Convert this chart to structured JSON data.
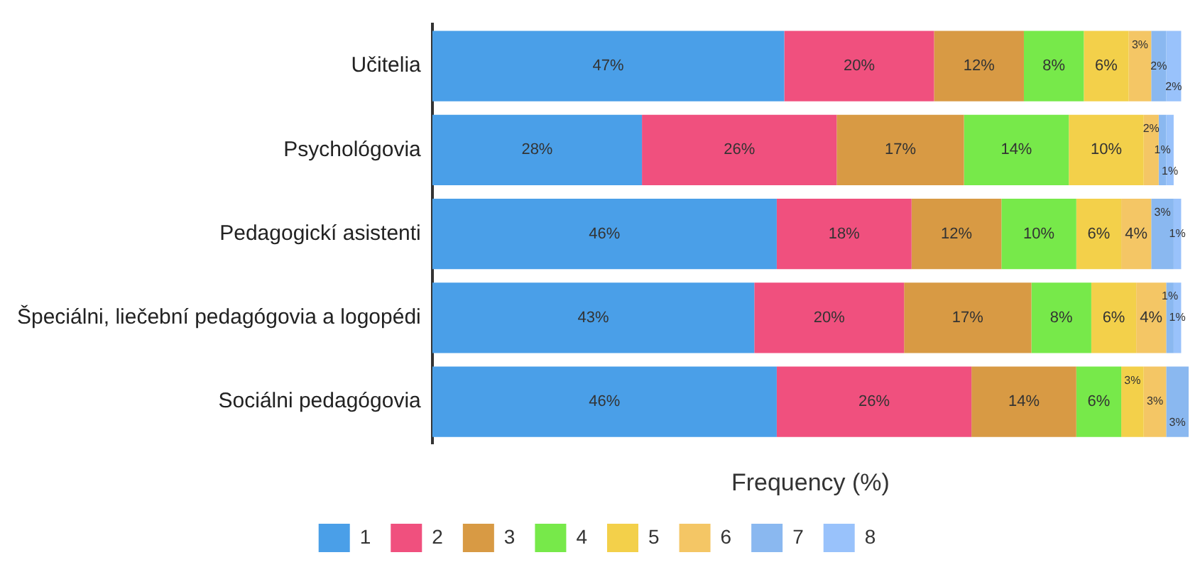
{
  "chart_data": {
    "type": "bar",
    "orientation": "horizontal",
    "stacked": true,
    "xlabel": "Frequency (%)",
    "tick_labels": "y",
    "legend": "bottom",
    "grid": false,
    "categories": [
      "Učitelia",
      "Psychológovia",
      "Pedagogickí asistenti",
      "Špeciálni, liečební pedagógovia a logopédi",
      "Sociálni pedagógovia"
    ],
    "series": [
      {
        "name": "1",
        "color": "#4a9fe8",
        "values": [
          47,
          28,
          46,
          43,
          46
        ],
        "value_labels": [
          "47%",
          "28%",
          "46%",
          "43%",
          "46%"
        ]
      },
      {
        "name": "2",
        "color": "#f0507e",
        "values": [
          20,
          26,
          18,
          20,
          26
        ],
        "value_labels": [
          "20%",
          "26%",
          "18%",
          "20%",
          "26%"
        ]
      },
      {
        "name": "3",
        "color": "#d89a44",
        "values": [
          12,
          17,
          12,
          17,
          14
        ],
        "value_labels": [
          "12%",
          "17%",
          "12%",
          "17%",
          "14%"
        ]
      },
      {
        "name": "4",
        "color": "#77e94a",
        "values": [
          8,
          14,
          10,
          8,
          6
        ],
        "value_labels": [
          "8%",
          "14%",
          "10%",
          "8%",
          "6%"
        ]
      },
      {
        "name": "5",
        "color": "#f3d04a",
        "values": [
          6,
          10,
          6,
          6,
          3
        ],
        "value_labels": [
          "6%",
          "10%",
          "6%",
          "6%",
          "3%"
        ]
      },
      {
        "name": "6",
        "color": "#f4c665",
        "values": [
          3,
          2,
          4,
          4,
          3
        ],
        "value_labels": [
          "3%",
          "2%",
          "4%",
          "4%",
          "3%"
        ]
      },
      {
        "name": "7",
        "color": "#8ab8f0",
        "values": [
          2,
          1,
          3,
          1,
          3
        ],
        "value_labels": [
          "2%",
          "1%",
          "3%",
          "1%",
          "3%"
        ]
      },
      {
        "name": "8",
        "color": "#99c2fb",
        "values": [
          2,
          1,
          1,
          1,
          null
        ],
        "value_labels": [
          "2%",
          "1%",
          "1%",
          "1%",
          null
        ]
      }
    ]
  }
}
